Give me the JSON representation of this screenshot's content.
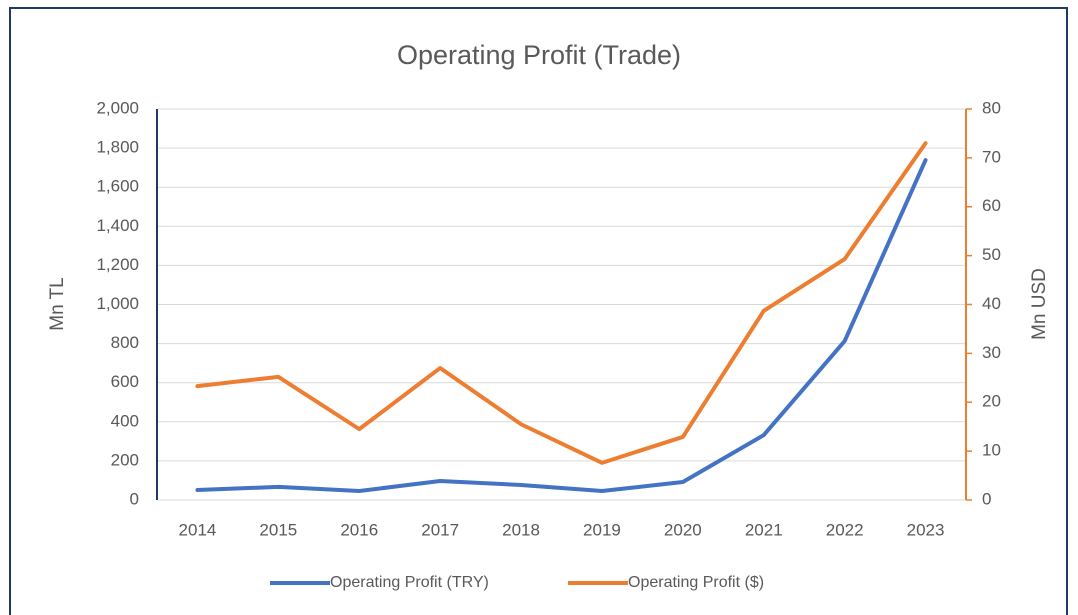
{
  "chart_data": {
    "type": "line",
    "title": "Operating Profit (Trade)",
    "categories": [
      "2014",
      "2015",
      "2016",
      "2017",
      "2018",
      "2019",
      "2020",
      "2021",
      "2022",
      "2023"
    ],
    "series": [
      {
        "name": "Operating Profit (TRY)",
        "color": "#4472c4",
        "values": [
          51,
          67,
          46,
          97,
          77,
          46,
          92,
          332,
          813,
          1739
        ]
      },
      {
        "name": "Operating Profit ($)",
        "color": "#ed7d31",
        "axis": "y2",
        "values": [
          23.3,
          25.2,
          14.5,
          27,
          15.5,
          7.6,
          12.9,
          38.7,
          49.3,
          73
        ]
      }
    ],
    "ylabel": "Mn TL",
    "y2label": "Mn USD",
    "ylim": [
      0,
      2000
    ],
    "yticks": [
      0,
      200,
      400,
      600,
      800,
      {
        "value": 1000,
        "label": "1,000"
      },
      {
        "value": 1200,
        "label": "1,200"
      },
      {
        "value": 1400,
        "label": "1,400"
      },
      {
        "value": 1600,
        "label": "1,600"
      },
      {
        "value": 1800,
        "label": "1,800"
      },
      {
        "value": 2000,
        "label": "2,000"
      }
    ],
    "y2lim": [
      0,
      80
    ],
    "y2ticks": [
      0,
      10,
      20,
      30,
      40,
      50,
      60,
      70,
      80
    ],
    "grid": true,
    "legend": "bottom"
  }
}
